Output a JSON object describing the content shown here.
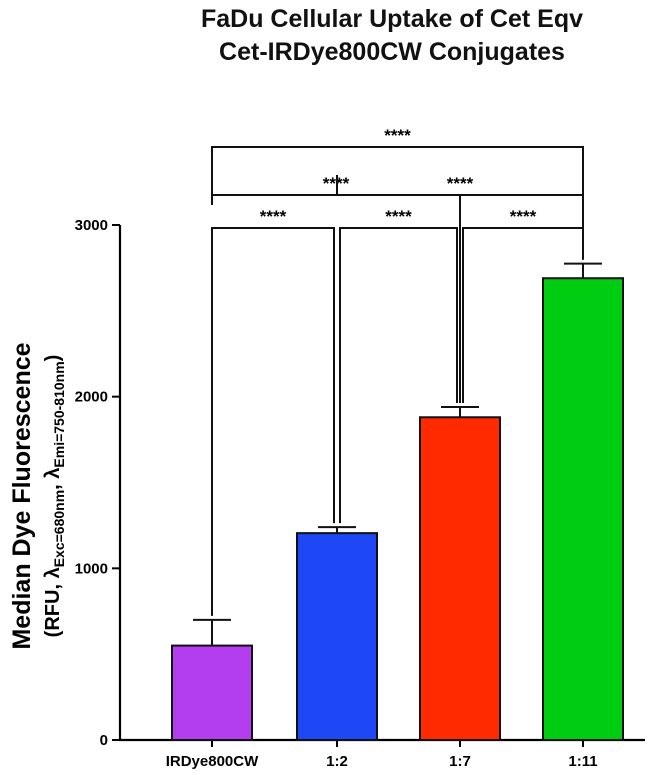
{
  "chart_data": {
    "type": "bar",
    "title_lines": [
      "FaDu Cellular Uptake of Cet Eqv",
      "Cet-IRDye800CW Conjugates"
    ],
    "ylabel": {
      "line1": "Median Dye Fluorescence",
      "line2": {
        "prefix": "(RFU, ",
        "lambda1": "λ",
        "sub1": "Exc=680nm",
        "sep": ", ",
        "lambda2": "λ",
        "sub2": "Emi=750-810nm",
        "suffix": ")"
      }
    },
    "xlabel": "",
    "categories": [
      "IRDye800CW",
      "1:2",
      "1:7",
      "1:11"
    ],
    "values": [
      550,
      1205,
      1880,
      2690
    ],
    "errors": [
      150,
      35,
      60,
      85
    ],
    "colors": [
      "#b23ef0",
      "#1e47f5",
      "#ff2a00",
      "#00cc11"
    ],
    "ylim": [
      0,
      3000
    ],
    "yticks": [
      0,
      1000,
      2000,
      3000
    ],
    "grid": false,
    "significance": [
      {
        "from": 0,
        "to": 1,
        "label": "****"
      },
      {
        "from": 1,
        "to": 2,
        "label": "****"
      },
      {
        "from": 2,
        "to": 3,
        "label": "****"
      },
      {
        "from": 0,
        "to": 2,
        "label": "****"
      },
      {
        "from": 1,
        "to": 3,
        "label": "****"
      },
      {
        "from": 0,
        "to": 3,
        "label": "****"
      }
    ]
  }
}
